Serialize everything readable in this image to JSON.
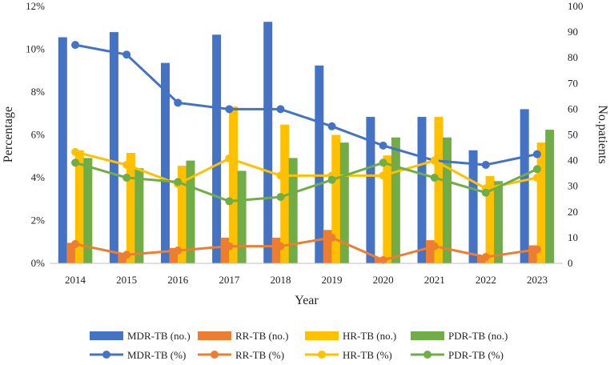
{
  "chart_data": {
    "type": "bar+line",
    "title": "",
    "xlabel": "Year",
    "ylabel_left": "Percentage",
    "ylabel_right": "No.patients",
    "categories": [
      "2014",
      "2015",
      "2016",
      "2017",
      "2018",
      "2019",
      "2020",
      "2021",
      "2022",
      "2023"
    ],
    "left_ylim": [
      0,
      12
    ],
    "left_ticks": [
      "0%",
      "2%",
      "4%",
      "6%",
      "8%",
      "10%",
      "12%"
    ],
    "right_ylim": [
      0,
      100
    ],
    "right_ticks": [
      "0",
      "10",
      "20",
      "30",
      "40",
      "50",
      "60",
      "70",
      "80",
      "90",
      "100"
    ],
    "bar_series": [
      {
        "name": "MDR-TB (no.)",
        "color": "#4472C4",
        "values": [
          88,
          90,
          78,
          89,
          94,
          77,
          57,
          57,
          44,
          60
        ]
      },
      {
        "name": "RR-TB (no.)",
        "color": "#ED7D31",
        "values": [
          8,
          4,
          6,
          10,
          10,
          13,
          2,
          9,
          3,
          7
        ]
      },
      {
        "name": "HR-TB (no.)",
        "color": "#FFC000",
        "values": [
          44,
          43,
          38,
          61,
          54,
          50,
          42,
          57,
          34,
          47
        ]
      },
      {
        "name": "PDR-TB (no.)",
        "color": "#70AD47",
        "values": [
          41,
          37,
          40,
          36,
          41,
          47,
          49,
          49,
          32,
          52
        ]
      }
    ],
    "line_series": [
      {
        "name": "MDR-TB (%)",
        "color": "#4472C4",
        "values": [
          10.2,
          9.75,
          7.5,
          7.2,
          7.2,
          6.4,
          5.5,
          4.8,
          4.6,
          5.1
        ]
      },
      {
        "name": "RR-TB (%)",
        "color": "#ED7D31",
        "values": [
          0.9,
          0.4,
          0.6,
          0.8,
          0.8,
          1.2,
          0.15,
          0.8,
          0.3,
          0.65
        ]
      },
      {
        "name": "HR-TB (%)",
        "color": "#FFC000",
        "values": [
          5.2,
          4.6,
          3.7,
          4.9,
          4.1,
          4.1,
          4.1,
          4.8,
          3.5,
          4.0
        ]
      },
      {
        "name": "PDR-TB (%)",
        "color": "#70AD47",
        "values": [
          4.7,
          4.0,
          3.8,
          2.9,
          3.1,
          3.9,
          4.7,
          4.0,
          3.3,
          4.4
        ]
      }
    ],
    "legend_position": "bottom"
  }
}
